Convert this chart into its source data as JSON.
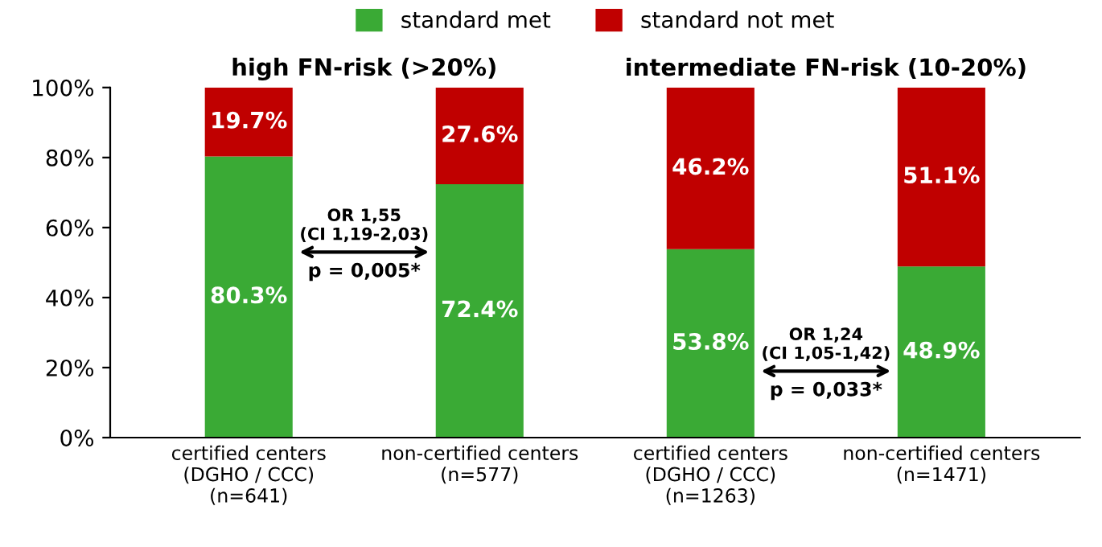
{
  "chart_data": {
    "type": "bar",
    "stacked": true,
    "categories": [
      "certified centers\n(DGHO / CCC)\n(n=641)",
      "non-certified centers\n(n=577)",
      "certified centers\n(DGHO / CCC)\n(n=1263)",
      "non-certified centers\n(n=1471)"
    ],
    "series": [
      {
        "name": "standard met",
        "color": "#3aaa35",
        "values": [
          80.3,
          72.4,
          53.8,
          48.9
        ],
        "value_labels": [
          "80.3%",
          "72.4%",
          "53.8%",
          "48.9%"
        ]
      },
      {
        "name": "standard not met",
        "color": "#c00000",
        "values": [
          19.7,
          27.6,
          46.2,
          51.1
        ],
        "value_labels": [
          "19.7%",
          "27.6%",
          "46.2%",
          "51.1%"
        ]
      }
    ],
    "ylim": [
      0,
      100
    ],
    "yticks": [
      {
        "value": 0,
        "label": "0%"
      },
      {
        "value": 20,
        "label": "20%"
      },
      {
        "value": 40,
        "label": "40%"
      },
      {
        "value": 60,
        "label": "60%"
      },
      {
        "value": 80,
        "label": "80%"
      },
      {
        "value": 100,
        "label": "100%"
      }
    ],
    "legend": "top",
    "grid": false,
    "annotations": [
      "high FN-risk (>20%)",
      "intermediate FN-risk (10-20%)",
      "OR 1,55\n(CI 1,19-2,03)",
      "p = 0,005*",
      "OR 1,24\n(CI 1,05-1,42)",
      "p = 0,033*"
    ]
  }
}
